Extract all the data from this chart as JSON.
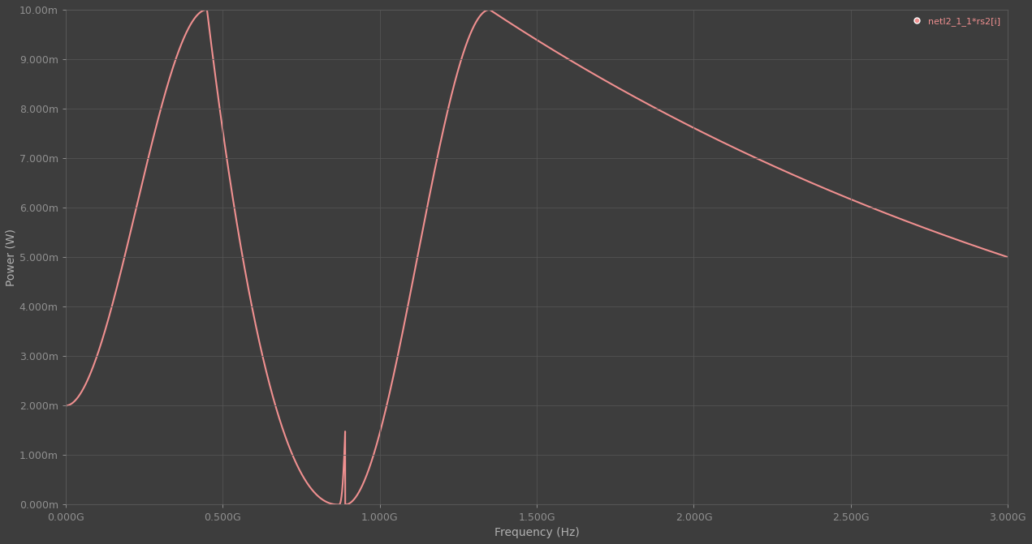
{
  "xlabel": "Frequency (Hz)",
  "ylabel": "Power (W)",
  "legend_label": "netI2_1_1*rs2[i]",
  "line_color": "#f09090",
  "background_color": "#3d3d3d",
  "plot_bg_color": "#3d3d3d",
  "grid_color": "#565656",
  "text_color": "#b0b0b0",
  "tick_color": "#909090",
  "xmin": 0.0,
  "xmax": 3000000000.0,
  "ymin": 0.0,
  "ymax": 0.01,
  "x_ticks": [
    0.0,
    500000000.0,
    1000000000.0,
    1500000000.0,
    2000000000.0,
    2500000000.0,
    3000000000.0
  ],
  "x_tick_labels": [
    "0.000G",
    "0.500G",
    "1.000G",
    "1.500G",
    "2.000G",
    "2.500G",
    "3.000G"
  ],
  "y_ticks": [
    0.0,
    0.001,
    0.002,
    0.003,
    0.004,
    0.005,
    0.006,
    0.007,
    0.008,
    0.009,
    0.01
  ],
  "y_tick_labels": [
    "0.000m",
    "1.000m",
    "2.000m",
    "3.000m",
    "4.000m",
    "5.000m",
    "6.000m",
    "7.000m",
    "8.000m",
    "9.000m",
    "10.00m"
  ],
  "line_width": 1.5,
  "figwidth": 12.71,
  "figheight": 6.71,
  "dpi": 100
}
